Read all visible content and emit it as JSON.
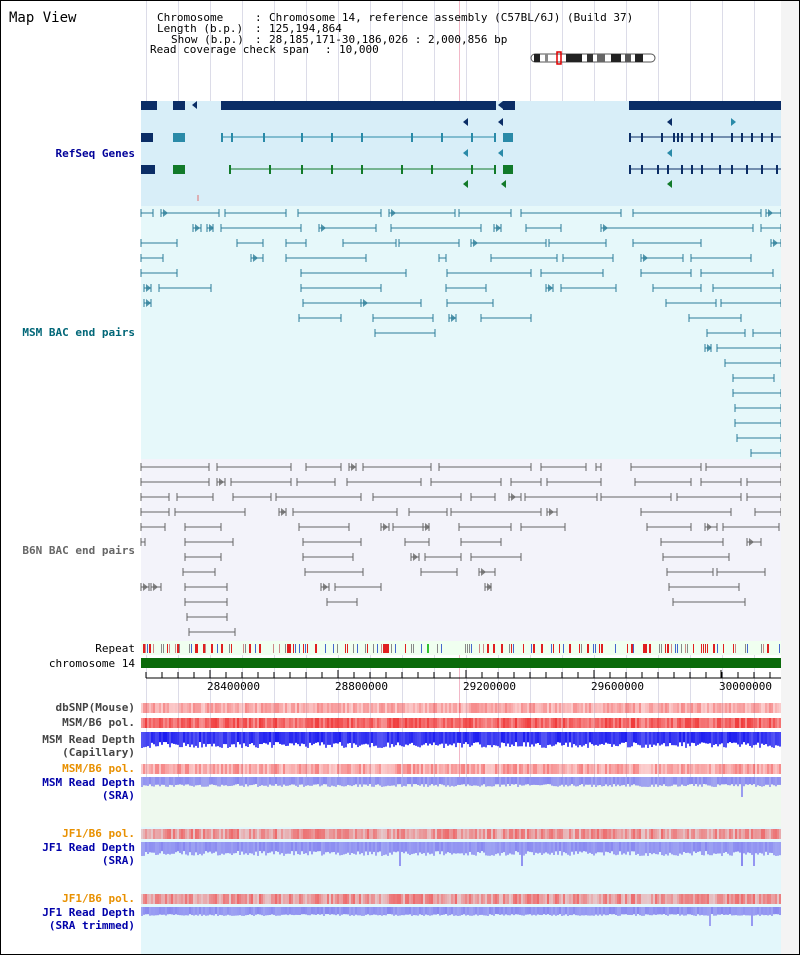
{
  "title": "Map View",
  "info": {
    "chromosome_key": "Chromosome",
    "chromosome_val": "Chromosome 14, reference assembly (C57BL/6J) (Build 37)",
    "length_key": "Length (b.p.)",
    "length_val": "125,194,864",
    "show_key": "Show (b.p.)",
    "show_val": "28,185,171-30,186,026 : 2,000,856 bp",
    "span_key": "Read coverage check span",
    "span_val": "10,000"
  },
  "tracks": {
    "refseq": "RefSeq Genes",
    "msm_bac": "MSM BAC end pairs",
    "b6n_bac": "B6N BAC end pairs",
    "repeat": "Repeat",
    "chromosome": "chromosome 14",
    "dbsnp": "dbSNP(Mouse)",
    "msm_b6_pol_1": "MSM/B6 pol.",
    "msm_depth_cap_1": "MSM Read Depth",
    "msm_depth_cap_2": "(Capillary)",
    "msm_b6_pol_2": "MSM/B6 pol.",
    "msm_depth_sra_1": "MSM Read Depth",
    "msm_depth_sra_2": "(SRA)",
    "jf1_b6_pol_1": "JF1/B6 pol.",
    "jf1_depth_sra_1": "JF1 Read Depth",
    "jf1_depth_sra_2": "(SRA)",
    "jf1_b6_pol_2": "JF1/B6 pol.",
    "jf1_depth_trim_1": "JF1 Read Depth",
    "jf1_depth_trim_2": "(SRA trimmed)"
  },
  "axis": {
    "ticks": [
      "28400000",
      "28800000",
      "29200000",
      "29600000",
      "30000000"
    ],
    "tick_values": [
      28400000,
      28800000,
      29200000,
      29600000,
      30000000
    ],
    "range": [
      28185171,
      30186026
    ]
  },
  "colors": {
    "refseq_bg": "#d8eef8",
    "msm_bg": "#e6f8fa",
    "b6n_bg": "#f3f3fa",
    "gene_dark": "#0b2d66",
    "gene_teal": "#2a8aa8",
    "gene_green": "#127a2a",
    "msm_pair": "#2c7d99",
    "b6n_pair": "#666666",
    "chromosome": "#0a6a0a",
    "pol_red": "#f03c3c",
    "depth_blue": "#1c1cf0",
    "depth_lavender": "#8888f0",
    "msm_label": "#000099",
    "b6n_label": "#666666",
    "orange_label": "#e89000",
    "blue_label": "#0000aa"
  }
}
